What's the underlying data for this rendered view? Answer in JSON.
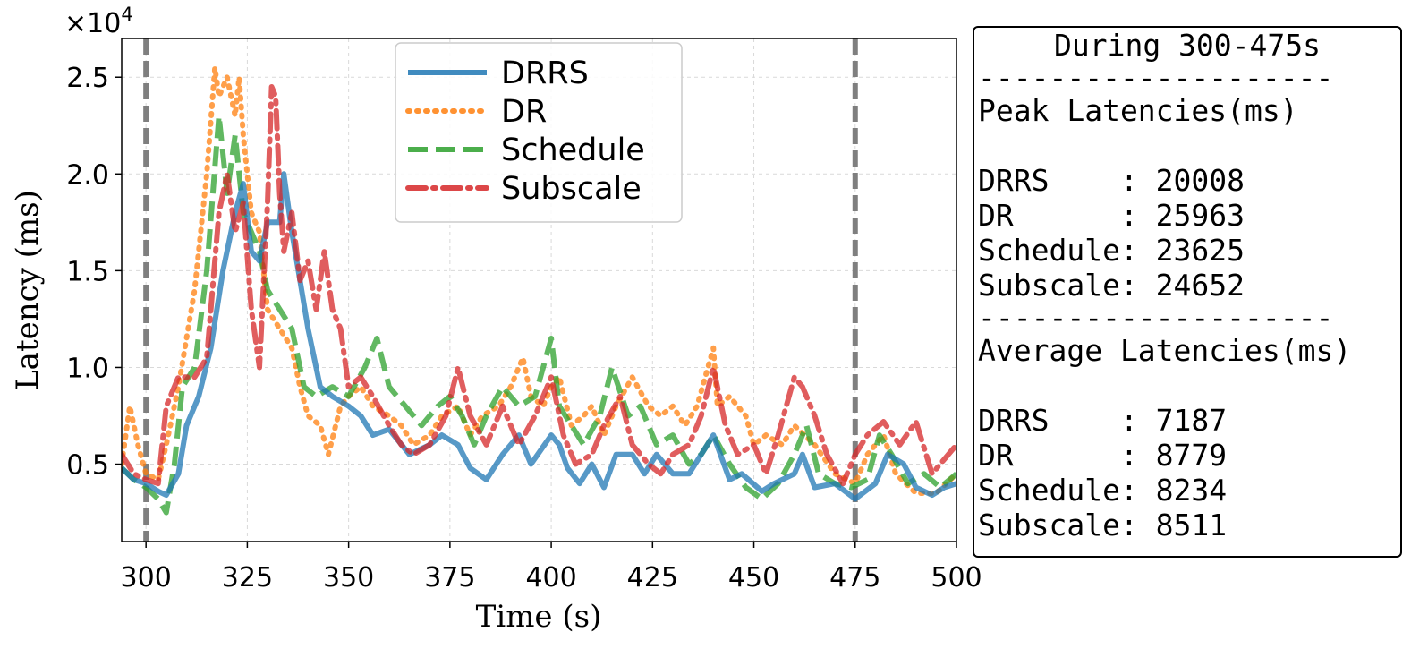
{
  "chart_data": {
    "type": "line",
    "title": "",
    "xlabel": "Time (s)",
    "ylabel": "Latency (ms)",
    "y_multiplier_label": "×10",
    "y_multiplier_exponent": "4",
    "xlim": [
      294,
      500
    ],
    "ylim": [
      0.1,
      2.7
    ],
    "xticks": [
      300,
      325,
      350,
      375,
      400,
      425,
      450,
      475,
      500
    ],
    "xtick_labels": [
      "300",
      "325",
      "350",
      "375",
      "400",
      "425",
      "450",
      "475",
      "500"
    ],
    "yticks": [
      0.5,
      1.0,
      1.5,
      2.0,
      2.5
    ],
    "ytick_labels": [
      "0.5",
      "1.0",
      "1.5",
      "2.0",
      "2.5"
    ],
    "grid": true,
    "legend_position": "top-center",
    "vertical_markers": [
      300,
      475
    ],
    "series": [
      {
        "name": "DRRS",
        "color": "#1f77b4",
        "style": "solid",
        "x": [
          294,
          297,
          300,
          303,
          305,
          308,
          310,
          313,
          316,
          319,
          322,
          324,
          326,
          328,
          330,
          333,
          334,
          336,
          338,
          340,
          343,
          346,
          350,
          353,
          356,
          360,
          365,
          370,
          373,
          377,
          380,
          384,
          388,
          392,
          395,
          400,
          402,
          404,
          407,
          410,
          413,
          416,
          420,
          423,
          426,
          430,
          434,
          437,
          440,
          444,
          447,
          452,
          455,
          460,
          462,
          465,
          470,
          475,
          480,
          483,
          487,
          490,
          494,
          497,
          500
        ],
        "y": [
          0.48,
          0.42,
          0.4,
          0.36,
          0.34,
          0.45,
          0.7,
          0.85,
          1.1,
          1.5,
          1.8,
          1.95,
          1.6,
          1.55,
          1.75,
          1.75,
          2.0,
          1.7,
          1.45,
          1.2,
          0.9,
          0.85,
          0.8,
          0.75,
          0.65,
          0.68,
          0.55,
          0.6,
          0.65,
          0.6,
          0.48,
          0.42,
          0.55,
          0.65,
          0.5,
          0.65,
          0.6,
          0.48,
          0.4,
          0.5,
          0.38,
          0.55,
          0.55,
          0.45,
          0.55,
          0.45,
          0.45,
          0.55,
          0.65,
          0.42,
          0.45,
          0.36,
          0.4,
          0.45,
          0.55,
          0.38,
          0.4,
          0.32,
          0.4,
          0.55,
          0.5,
          0.38,
          0.34,
          0.38,
          0.4
        ]
      },
      {
        "name": "DR",
        "color": "#ff7f0e",
        "style": "dotted",
        "x": [
          294,
          296,
          298,
          300,
          303,
          305,
          308,
          312,
          315,
          317,
          318,
          320,
          322,
          323,
          324,
          326,
          328,
          330,
          333,
          336,
          338,
          340,
          343,
          345,
          348,
          350,
          353,
          356,
          360,
          363,
          366,
          370,
          373,
          377,
          380,
          383,
          387,
          390,
          393,
          395,
          398,
          400,
          402,
          405,
          408,
          410,
          413,
          416,
          420,
          424,
          427,
          430,
          433,
          436,
          440,
          441,
          444,
          448,
          450,
          453,
          457,
          460,
          465,
          470,
          475,
          478,
          482,
          485,
          490,
          495,
          500
        ],
        "y": [
          0.5,
          0.8,
          0.6,
          0.45,
          0.42,
          0.6,
          0.9,
          1.4,
          2.0,
          2.55,
          2.4,
          2.5,
          2.3,
          2.5,
          2.2,
          1.8,
          1.7,
          1.3,
          1.2,
          1.1,
          0.9,
          0.75,
          0.7,
          0.55,
          0.8,
          0.85,
          0.9,
          0.8,
          0.75,
          0.7,
          0.6,
          0.65,
          0.75,
          0.8,
          0.65,
          0.75,
          0.8,
          0.9,
          1.05,
          0.85,
          0.8,
          0.9,
          0.95,
          0.7,
          0.75,
          0.8,
          0.65,
          0.8,
          0.95,
          0.8,
          0.75,
          0.8,
          0.7,
          0.8,
          1.1,
          0.8,
          0.85,
          0.75,
          0.6,
          0.65,
          0.6,
          0.7,
          0.6,
          0.45,
          0.4,
          0.55,
          0.65,
          0.45,
          0.35,
          0.35,
          0.45
        ]
      },
      {
        "name": "Schedule",
        "color": "#2ca02c",
        "style": "dashed",
        "x": [
          294,
          297,
          300,
          303,
          305,
          307,
          309,
          312,
          315,
          318,
          320,
          322,
          324,
          326,
          328,
          330,
          333,
          336,
          339,
          342,
          346,
          350,
          354,
          357,
          360,
          364,
          368,
          372,
          375,
          378,
          381,
          384,
          388,
          392,
          396,
          400,
          402,
          405,
          408,
          412,
          415,
          419,
          422,
          426,
          430,
          434,
          437,
          440,
          444,
          448,
          452,
          456,
          460,
          463,
          466,
          470,
          474,
          478,
          481,
          484,
          488,
          492,
          496,
          500
        ],
        "y": [
          0.48,
          0.42,
          0.38,
          0.32,
          0.25,
          0.5,
          0.9,
          1.0,
          1.5,
          2.3,
          1.9,
          2.2,
          1.8,
          1.7,
          1.6,
          1.4,
          1.3,
          1.2,
          0.9,
          0.85,
          0.9,
          0.85,
          1.0,
          1.15,
          0.9,
          0.8,
          0.7,
          0.8,
          0.85,
          0.75,
          0.6,
          0.75,
          0.9,
          0.8,
          0.85,
          1.15,
          0.8,
          0.7,
          0.6,
          0.75,
          1.0,
          0.75,
          0.8,
          0.6,
          0.65,
          0.5,
          0.55,
          0.65,
          0.5,
          0.38,
          0.32,
          0.4,
          0.55,
          0.7,
          0.45,
          0.4,
          0.38,
          0.42,
          0.65,
          0.55,
          0.4,
          0.45,
          0.38,
          0.45
        ]
      },
      {
        "name": "Subscale",
        "color": "#d62728",
        "style": "dashdot",
        "x": [
          294,
          297,
          300,
          303,
          305,
          308,
          312,
          315,
          318,
          320,
          322,
          324,
          326,
          328,
          330,
          331,
          332,
          333,
          334,
          336,
          338,
          340,
          342,
          344,
          346,
          348,
          350,
          353,
          356,
          360,
          363,
          366,
          370,
          374,
          377,
          380,
          384,
          388,
          392,
          396,
          400,
          403,
          406,
          410,
          413,
          417,
          420,
          424,
          427,
          430,
          434,
          437,
          440,
          443,
          446,
          450,
          453,
          456,
          460,
          462,
          465,
          468,
          472,
          475,
          478,
          482,
          486,
          490,
          494,
          498,
          500
        ],
        "y": [
          0.55,
          0.45,
          0.42,
          0.4,
          0.8,
          0.95,
          0.95,
          1.05,
          1.8,
          2.0,
          1.7,
          1.85,
          1.3,
          1.0,
          1.85,
          2.45,
          2.4,
          1.9,
          1.6,
          1.8,
          1.45,
          1.55,
          1.3,
          1.6,
          1.3,
          1.2,
          0.9,
          0.95,
          0.85,
          0.7,
          0.6,
          0.55,
          0.6,
          0.75,
          1.0,
          0.75,
          0.6,
          0.8,
          0.6,
          0.75,
          0.95,
          0.65,
          0.5,
          0.55,
          0.7,
          0.85,
          0.6,
          0.5,
          0.45,
          0.55,
          0.6,
          0.75,
          1.0,
          0.7,
          0.55,
          0.6,
          0.45,
          0.65,
          0.95,
          0.9,
          0.75,
          0.55,
          0.4,
          0.55,
          0.65,
          0.72,
          0.6,
          0.72,
          0.45,
          0.55,
          0.6
        ]
      }
    ]
  },
  "stats_box": {
    "title": "During 300-475s",
    "divider": "--------------------",
    "peak_header": "Peak Latencies(ms)",
    "peak_rows": [
      "DRRS    : 20008",
      "DR      : 25963",
      "Schedule: 23625",
      "Subscale: 24652"
    ],
    "avg_header": "Average Latencies(ms)",
    "avg_rows": [
      "DRRS    : 7187",
      "DR      : 8779",
      "Schedule: 8234",
      "Subscale: 8511"
    ]
  }
}
